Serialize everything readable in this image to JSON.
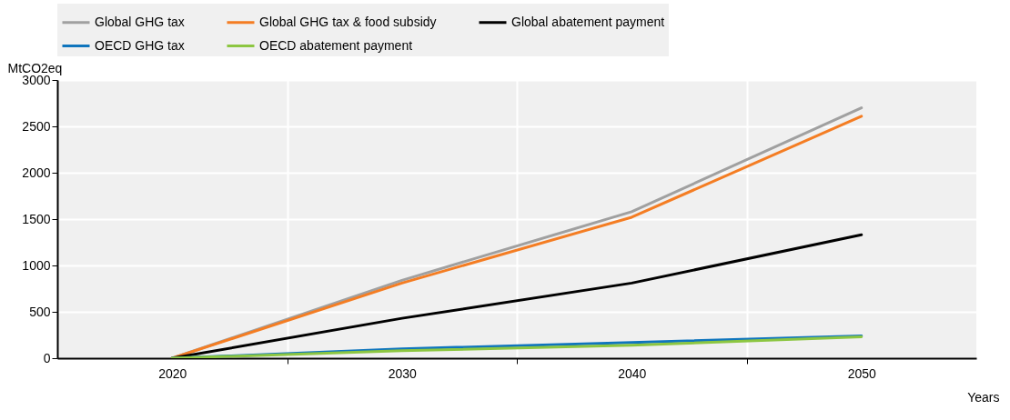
{
  "chart_data": {
    "type": "line",
    "xlabel": "Years",
    "ylabel": "MtCO2eq",
    "x": [
      2020,
      2030,
      2040,
      2050
    ],
    "xlim": [
      2015,
      2055
    ],
    "xticks": [
      2020,
      {
        "value": 2025,
        "label": null
      },
      2030,
      {
        "value": 2035,
        "label": null
      },
      2040,
      {
        "value": 2045,
        "label": null
      },
      2050
    ],
    "ylim": [
      0,
      3000
    ],
    "yticks": [
      0,
      500,
      1000,
      1500,
      2000,
      2500,
      3000
    ],
    "grid": true,
    "legend": "top",
    "marker": "none",
    "line_style": "solid",
    "series": [
      {
        "name": "Global GHG tax",
        "color": "#a0a0a0",
        "values": [
          0,
          840,
          1580,
          2700
        ]
      },
      {
        "name": "Global GHG tax & food subsidy",
        "color": "#f47d23",
        "values": [
          0,
          810,
          1520,
          2610
        ]
      },
      {
        "name": "Global abatement payment",
        "color": "#000000",
        "values": [
          0,
          430,
          810,
          1330
        ]
      },
      {
        "name": "OECD GHG tax",
        "color": "#0f75bd",
        "values": [
          0,
          100,
          170,
          240
        ]
      },
      {
        "name": "OECD abatement payment",
        "color": "#8cc641",
        "values": [
          0,
          80,
          140,
          230
        ]
      }
    ]
  }
}
